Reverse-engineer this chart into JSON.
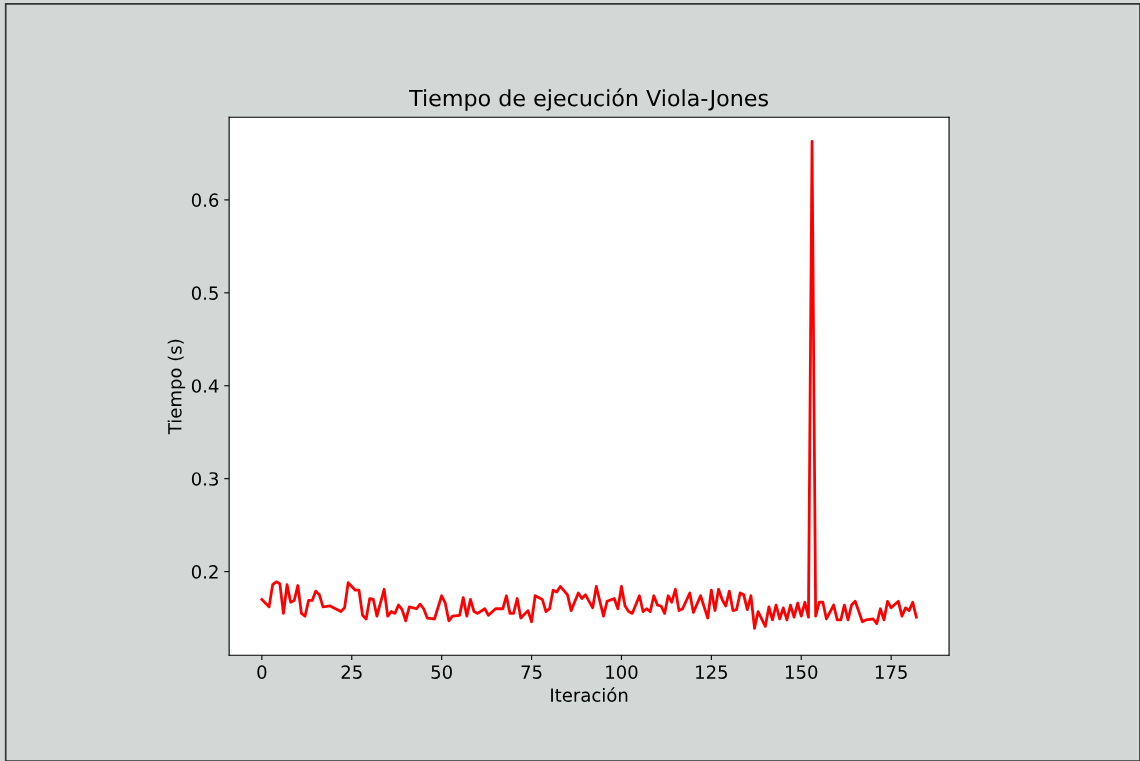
{
  "chart_data": {
    "type": "line",
    "title": "Tiempo de ejecución Viola-Jones",
    "xlabel": "Iteración",
    "ylabel": "Tiempo (s)",
    "xlim": [
      -9.1,
      191.1
    ],
    "ylim": [
      0.11,
      0.689
    ],
    "xticks": [
      0,
      25,
      50,
      75,
      100,
      125,
      150,
      175
    ],
    "yticks": [
      0.2,
      0.3,
      0.4,
      0.5,
      0.6
    ],
    "grid": false,
    "legend": false,
    "series": [
      {
        "color": "#ff0000",
        "x": [
          0,
          2,
          3,
          4,
          5,
          6,
          7,
          8,
          9,
          10,
          11,
          12,
          13,
          14,
          15,
          16,
          17,
          19,
          22,
          23,
          24,
          26,
          27,
          28,
          29,
          30,
          31,
          32,
          34,
          35,
          36,
          37,
          38,
          39,
          40,
          41,
          43,
          44,
          45,
          46,
          48,
          50,
          51,
          52,
          53,
          55,
          56,
          57,
          58,
          59,
          60,
          62,
          63,
          65,
          67,
          68,
          69,
          70,
          71,
          72,
          74,
          75,
          76,
          78,
          79,
          80,
          81,
          82,
          83,
          85,
          86,
          88,
          89,
          90,
          92,
          93,
          95,
          96,
          98,
          99,
          100,
          101,
          102,
          103,
          105,
          106,
          107,
          108,
          109,
          110,
          111,
          112,
          113,
          114,
          115,
          116,
          117,
          119,
          120,
          121,
          122,
          124,
          125,
          126,
          127,
          128,
          129,
          130,
          131,
          132,
          133,
          134,
          135,
          136,
          137,
          138,
          140,
          141,
          142,
          143,
          144,
          145,
          146,
          147,
          148,
          149,
          150,
          151,
          152,
          153,
          154,
          155,
          156,
          157,
          159,
          160,
          161,
          162,
          163,
          164,
          165,
          167,
          168,
          170,
          171,
          172,
          173,
          174,
          175,
          177,
          178,
          179,
          180,
          181,
          182
        ],
        "values": [
          0.17,
          0.162,
          0.186,
          0.189,
          0.187,
          0.155,
          0.186,
          0.167,
          0.169,
          0.185,
          0.155,
          0.152,
          0.169,
          0.169,
          0.179,
          0.175,
          0.162,
          0.163,
          0.157,
          0.161,
          0.188,
          0.18,
          0.18,
          0.153,
          0.149,
          0.171,
          0.17,
          0.152,
          0.181,
          0.152,
          0.157,
          0.155,
          0.164,
          0.159,
          0.147,
          0.162,
          0.16,
          0.165,
          0.16,
          0.15,
          0.149,
          0.174,
          0.166,
          0.147,
          0.152,
          0.153,
          0.172,
          0.152,
          0.17,
          0.157,
          0.155,
          0.16,
          0.153,
          0.16,
          0.16,
          0.174,
          0.155,
          0.155,
          0.171,
          0.15,
          0.158,
          0.146,
          0.174,
          0.17,
          0.157,
          0.16,
          0.18,
          0.178,
          0.184,
          0.175,
          0.158,
          0.177,
          0.171,
          0.175,
          0.161,
          0.184,
          0.152,
          0.168,
          0.171,
          0.16,
          0.184,
          0.163,
          0.157,
          0.155,
          0.174,
          0.157,
          0.16,
          0.157,
          0.174,
          0.164,
          0.163,
          0.155,
          0.174,
          0.167,
          0.181,
          0.158,
          0.16,
          0.177,
          0.156,
          0.165,
          0.174,
          0.15,
          0.18,
          0.158,
          0.181,
          0.17,
          0.163,
          0.179,
          0.158,
          0.159,
          0.177,
          0.175,
          0.159,
          0.174,
          0.139,
          0.157,
          0.141,
          0.162,
          0.148,
          0.164,
          0.149,
          0.161,
          0.148,
          0.164,
          0.151,
          0.166,
          0.152,
          0.167,
          0.151,
          0.663,
          0.152,
          0.167,
          0.167,
          0.149,
          0.164,
          0.148,
          0.148,
          0.164,
          0.148,
          0.164,
          0.168,
          0.146,
          0.148,
          0.149,
          0.144,
          0.16,
          0.148,
          0.168,
          0.161,
          0.168,
          0.152,
          0.161,
          0.158,
          0.167,
          0.151
        ]
      }
    ]
  }
}
